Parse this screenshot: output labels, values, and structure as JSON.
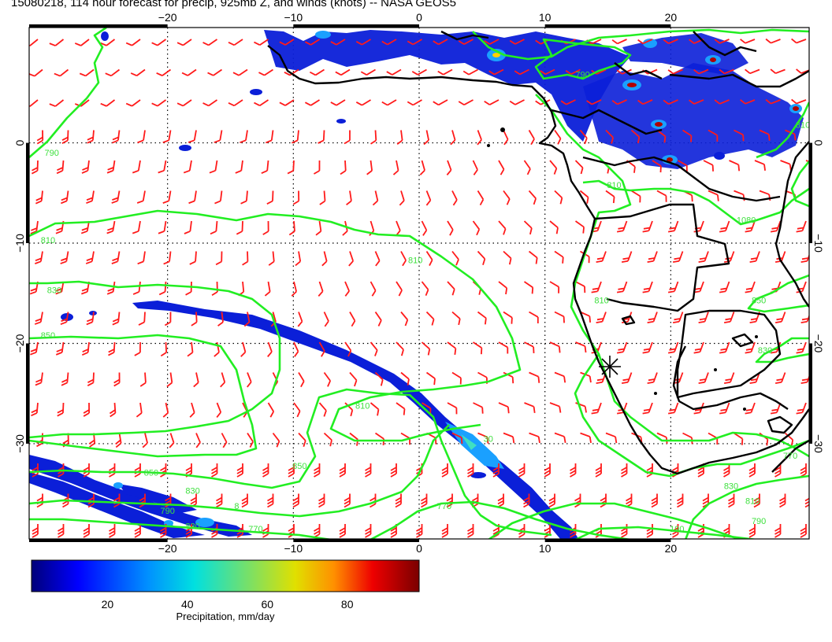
{
  "title": "15080218, 114 hour forecast for precip, 925mb Z, and winds (knots) -- NASA GEOS5",
  "map": {
    "lon_range": [
      -31,
      31
    ],
    "lat_range": [
      -39.5,
      11.5
    ],
    "lon_ticks": [
      {
        "value": -20,
        "label": "−20"
      },
      {
        "value": -10,
        "label": "−10"
      },
      {
        "value": 0,
        "label": "0"
      },
      {
        "value": 10,
        "label": "10"
      },
      {
        "value": 20,
        "label": "20"
      }
    ],
    "lat_ticks": [
      {
        "value": 0,
        "label": "0"
      },
      {
        "value": -10,
        "label": "−10"
      },
      {
        "value": -20,
        "label": "−20"
      },
      {
        "value": -30,
        "label": "−30"
      }
    ],
    "colors": {
      "wind_barbs": "#ff1a1a",
      "contours": "#22ee22",
      "coast": "#000000",
      "grid": "#000000"
    },
    "contour_labels": [
      {
        "text": "790",
        "lon": -29.2,
        "lat": -1.3
      },
      {
        "text": "810",
        "lon": -29.5,
        "lat": -10.0
      },
      {
        "text": "830",
        "lon": -29.0,
        "lat": -15.0
      },
      {
        "text": "850",
        "lon": -29.5,
        "lat": -19.5
      },
      {
        "text": "810",
        "lon": -0.3,
        "lat": -12.0
      },
      {
        "text": "810",
        "lon": -4.5,
        "lat": -26.5
      },
      {
        "text": "850",
        "lon": -21.3,
        "lat": -33.2
      },
      {
        "text": "830",
        "lon": -18.0,
        "lat": -35.0
      },
      {
        "text": "8",
        "lon": -14.5,
        "lat": -36.5
      },
      {
        "text": "790",
        "lon": -20.0,
        "lat": -37.0
      },
      {
        "text": "830",
        "lon": -18.0,
        "lat": -38.5
      },
      {
        "text": "770",
        "lon": -13.0,
        "lat": -38.8
      },
      {
        "text": "850",
        "lon": -9.5,
        "lat": -32.5
      },
      {
        "text": "770",
        "lon": 2.0,
        "lat": -36.5
      },
      {
        "text": "30",
        "lon": 5.5,
        "lat": -29.8
      },
      {
        "text": "830",
        "lon": 24.8,
        "lat": -34.5
      },
      {
        "text": "810",
        "lon": 26.5,
        "lat": -36.0
      },
      {
        "text": "190",
        "lon": 20.5,
        "lat": -38.8
      },
      {
        "text": "790",
        "lon": 27.0,
        "lat": -38.0
      },
      {
        "text": "770",
        "lon": 29.5,
        "lat": -31.5
      },
      {
        "text": "810",
        "lon": 14.5,
        "lat": -16.0
      },
      {
        "text": "850",
        "lon": 27.0,
        "lat": -16.0
      },
      {
        "text": "830",
        "lon": 27.5,
        "lat": -21.0
      },
      {
        "text": "1080",
        "lon": 26.0,
        "lat": -8.0
      },
      {
        "text": "790",
        "lon": 13.0,
        "lat": 6.5
      },
      {
        "text": "810",
        "lon": 30.5,
        "lat": 1.5
      },
      {
        "text": "810",
        "lon": 15.5,
        "lat": -4.5
      }
    ]
  },
  "colorbar": {
    "ticks": [
      {
        "value": 20,
        "label": "20"
      },
      {
        "value": 40,
        "label": "40"
      },
      {
        "value": 60,
        "label": "60"
      },
      {
        "value": 80,
        "label": "80"
      }
    ],
    "range": [
      1,
      98
    ],
    "title": "Precipitation, mm/day"
  }
}
